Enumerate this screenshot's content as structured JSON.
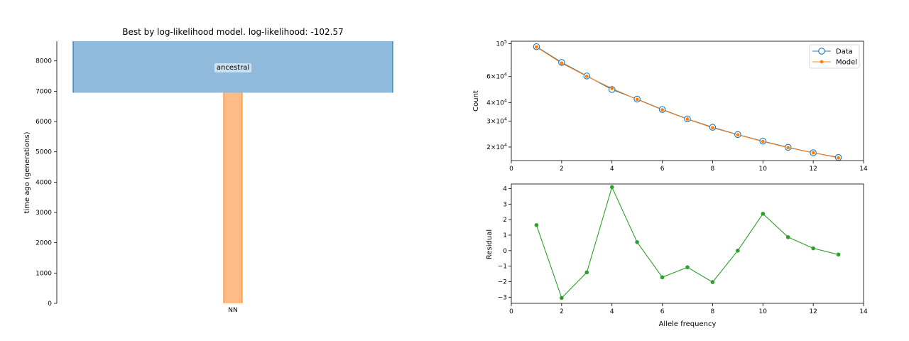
{
  "chart_data": [
    {
      "type": "demography",
      "title": "Best by log-likelihood model. log-likelihood: -102.57",
      "ylabel": "time ago (generations)",
      "ylim": [
        0,
        8650
      ],
      "yticks": [
        0,
        1000,
        2000,
        3000,
        4000,
        5000,
        6000,
        7000,
        8000
      ],
      "xtick_labels": [
        "NN"
      ],
      "demes": [
        {
          "name": "ancestral",
          "start_time": 8650,
          "end_time": 6950,
          "color": "#8fbadb",
          "edge": "#1f77b4"
        },
        {
          "name": "NN",
          "start_time": 6950,
          "end_time": 0,
          "color": "#ffbb85",
          "edge": "#ff7f0e"
        }
      ]
    },
    {
      "type": "line",
      "xlabel": "",
      "ylabel": "Count",
      "xlim": [
        0,
        14
      ],
      "xticks": [
        0,
        2,
        4,
        6,
        8,
        10,
        12,
        14
      ],
      "yscale": "log",
      "ylim": [
        16200,
        104000
      ],
      "yticks": [
        {
          "value": 20000,
          "base": "2",
          "exp": "4"
        },
        {
          "value": 30000,
          "base": "3",
          "exp": "4"
        },
        {
          "value": 40000,
          "base": "4",
          "exp": "4"
        },
        {
          "value": 60000,
          "base": "6",
          "exp": "4"
        },
        {
          "value": 100000,
          "base": "",
          "exp": "5"
        }
      ],
      "legend": "top-right",
      "x": [
        1,
        2,
        3,
        4,
        5,
        6,
        7,
        8,
        9,
        10,
        11,
        12,
        13
      ],
      "series": [
        {
          "name": "Data",
          "color": "#1f77b4",
          "marker": "open-circle",
          "values": [
            95500,
            74700,
            60500,
            49000,
            42200,
            35900,
            31000,
            27200,
            24300,
            21900,
            19900,
            18300,
            17000
          ]
        },
        {
          "name": "Model",
          "color": "#ff7f0e",
          "marker": "dot",
          "values": [
            95000,
            73900,
            60200,
            49800,
            42000,
            35700,
            30900,
            27000,
            24200,
            21800,
            19800,
            18300,
            16900
          ]
        }
      ]
    },
    {
      "type": "line",
      "xlabel": "Allele frequency",
      "ylabel": "Residual",
      "xlim": [
        0,
        14
      ],
      "xticks": [
        0,
        2,
        4,
        6,
        8,
        10,
        12,
        14
      ],
      "ylim": [
        -3.4,
        4.3
      ],
      "yticks": [
        -3,
        -2,
        -1,
        0,
        1,
        2,
        3,
        4
      ],
      "x": [
        1,
        2,
        3,
        4,
        5,
        6,
        7,
        8,
        9,
        10,
        11,
        12,
        13
      ],
      "series": [
        {
          "color": "#2ca02c",
          "values": [
            1.65,
            -3.05,
            -1.4,
            4.1,
            0.55,
            -1.72,
            -1.07,
            -2.03,
            0.0,
            2.38,
            0.87,
            0.15,
            -0.25
          ]
        }
      ]
    }
  ]
}
